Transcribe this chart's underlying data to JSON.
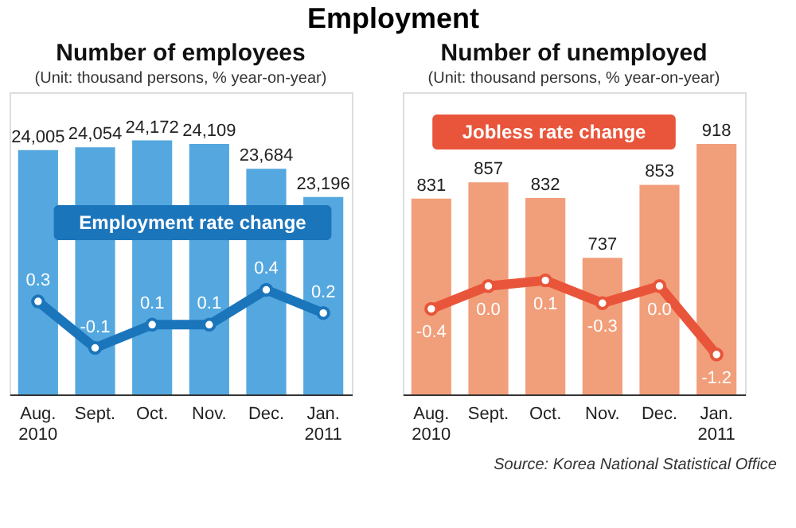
{
  "chart_data": [
    {
      "type": "bar",
      "title": "Number of employees",
      "subtitle": "(Unit: thousand persons, % year-on-year)",
      "annotations": [
        "Employment"
      ],
      "categories": [
        "Aug.\n2010",
        "Sept.",
        "Oct.",
        "Nov.",
        "Dec.",
        "Jan.\n2011"
      ],
      "series": [
        {
          "color": "#54a8df",
          "values": [
            24005,
            24054,
            24172,
            24109,
            23684,
            23196
          ],
          "value_labels": [
            "24,005",
            "24,054",
            "24,172",
            "24,109",
            "23,684",
            "23,196"
          ]
        },
        {
          "type": "line",
          "axis": "y2",
          "name": "Employment rate change",
          "color": "#1b75bb",
          "values": [
            0.3,
            -0.1,
            0.1,
            0.1,
            0.4,
            0.2
          ],
          "value_labels": [
            "0.3",
            "-0.1",
            "0.1",
            "0.1",
            "0.4",
            "0.2"
          ]
        }
      ],
      "ylim": [
        19800,
        25000
      ],
      "y2lim": [
        -0.5,
        2.1
      ],
      "tick_labels": "x",
      "grid": false,
      "legend": false,
      "marker": "circle",
      "line_style": "solid"
    },
    {
      "type": "bar",
      "title": "Number of unemployed",
      "subtitle": "(Unit: thousand persons, % year-on-year)",
      "annotations": [
        "Source: Korea National Statistical Office"
      ],
      "categories": [
        "Aug.\n2010",
        "Sept.",
        "Oct.",
        "Nov.",
        "Dec.",
        "Jan.\n2011"
      ],
      "series": [
        {
          "color": "#f19e7a",
          "values": [
            831,
            857,
            832,
            737,
            853,
            918
          ],
          "value_labels": [
            "831",
            "857",
            "832",
            "737",
            "853",
            "918"
          ]
        },
        {
          "type": "line",
          "axis": "y2",
          "name": "Jobless rate change",
          "color": "#e9553a",
          "values": [
            -0.4,
            0.0,
            0.1,
            -0.3,
            0.0,
            -1.2
          ],
          "value_labels": [
            "-0.4",
            "0.0",
            "0.1",
            "-0.3",
            "0.0",
            "-1.2"
          ]
        }
      ],
      "ylim": [
        520,
        1000
      ],
      "y2lim": [
        -1.9,
        3.4
      ],
      "tick_labels": "x",
      "grid": false,
      "legend": false,
      "marker": "circle",
      "line_style": "solid"
    }
  ]
}
